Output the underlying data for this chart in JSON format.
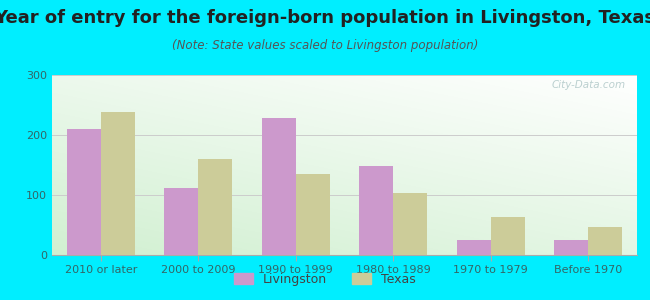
{
  "title": "Year of entry for the foreign-born population in Livingston, Texas",
  "subtitle": "(Note: State values scaled to Livingston population)",
  "categories": [
    "2010 or later",
    "2000 to 2009",
    "1990 to 1999",
    "1980 to 1989",
    "1970 to 1979",
    "Before 1970"
  ],
  "livingston_values": [
    210,
    112,
    228,
    148,
    25,
    25
  ],
  "texas_values": [
    238,
    160,
    135,
    104,
    63,
    46
  ],
  "livingston_color": "#CC99CC",
  "texas_color": "#CCCC99",
  "background_color": "#00EEFF",
  "ylim": [
    0,
    300
  ],
  "yticks": [
    0,
    100,
    200,
    300
  ],
  "bar_width": 0.35,
  "title_fontsize": 13,
  "subtitle_fontsize": 8.5,
  "legend_fontsize": 9,
  "tick_fontsize": 8,
  "watermark": "City-Data.com"
}
